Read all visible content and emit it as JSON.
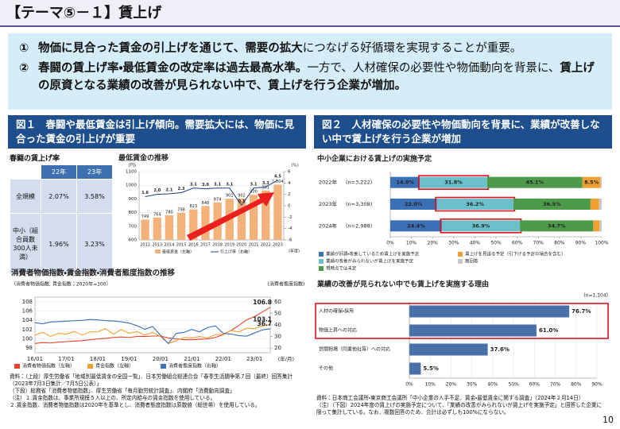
{
  "header": {
    "title": "【テーマ⑤－１】賃上げ"
  },
  "points": [
    {
      "marker": "①",
      "parts": [
        {
          "text": "物価に見合った賃金の引上げを通じて、需要の拡大",
          "bold": true
        },
        {
          "text": "につなげる好循環を実現することが重要。",
          "bold": false
        }
      ]
    },
    {
      "marker": "②",
      "parts": [
        {
          "text": "春闘の賃上げ率・最低賃金の改定率は過去最高水準。",
          "bold": true
        },
        {
          "text": "一方で、人材確保の必要性や物価動向を背景に、",
          "bold": false
        },
        {
          "text": "賃上げの原資となる業績の改善が見られない中で、賃上げを行う企業が増加。",
          "bold": true
        }
      ]
    }
  ],
  "fig1": {
    "heading": "図１　春闘や最低賃金は引上げ傾向。需要拡大には、物価に見合った賃金の引上げが重要",
    "table": {
      "title": "春闘の賃上げ率",
      "columns": [
        "22年",
        "23年"
      ],
      "rows": [
        {
          "label": "全規模",
          "values": [
            "2.07%",
            "3.58%"
          ]
        },
        {
          "label": "中小（組合員数300人未満）",
          "values": [
            "1.96%",
            "3.23%"
          ]
        }
      ]
    },
    "min_wage": {
      "type": "bar",
      "title": "最低賃金の推移",
      "y_unit": "(円)",
      "y2_unit": "(%)",
      "x_unit": "(年度)",
      "categories": [
        "2012",
        "2013",
        "2014",
        "2015",
        "2016",
        "2017",
        "2018",
        "2019",
        "2020",
        "2021",
        "2022",
        "2023"
      ],
      "series": [
        {
          "name": "最低賃金（左軸）",
          "color": "#f2b27a",
          "values": [
            749,
            764,
            780,
            798,
            823,
            848,
            874,
            901,
            902,
            930,
            961,
            1004
          ],
          "value_labels": [
            "749",
            "764",
            "780",
            "798",
            "823",
            "848",
            "874",
            "901",
            "902",
            "930",
            "961",
            "1,004"
          ]
        },
        {
          "name": "引上げ率（右軸）",
          "color": "#1f3f7a",
          "axis": "y2",
          "type": "line",
          "values": [
            1.6,
            2.0,
            2.1,
            2.3,
            3.1,
            3.0,
            3.1,
            3.1,
            0.1,
            3.1,
            3.3,
            4.5
          ],
          "value_labels": [
            "1.6",
            "2.0",
            "2.1",
            "2.3",
            "3.1",
            "3.0",
            "3.1",
            "3.1",
            "0.1",
            "3.1",
            "3.3",
            "4.5"
          ]
        }
      ],
      "ylim": [
        600,
        1100
      ],
      "yticks": [
        600,
        700,
        800,
        900,
        1000,
        1100
      ],
      "y2lim": [
        -6,
        6
      ],
      "y2ticks": [
        -6,
        -4,
        -2,
        0,
        2,
        4,
        6
      ],
      "grid": true
    },
    "cpi": {
      "type": "line",
      "title": "消費者物価指数・賃金指数・消費者態度指数の推移",
      "y_unit": "（消費者物価指数, 賃金指数；2020年=100）",
      "y2_unit": "(消費者態度指数)",
      "x_unit": "(年/月)",
      "categories": [
        "16/01",
        null,
        null,
        null,
        "17/01",
        null,
        null,
        null,
        "18/01",
        null,
        null,
        null,
        "19/01",
        null,
        null,
        null,
        "20/01",
        null,
        null,
        null,
        "21/01",
        null,
        null,
        null,
        "22/01",
        null,
        null,
        null,
        "23/01",
        null,
        null
      ],
      "series": [
        {
          "name": "消費者物価指数（左軸）",
          "color": "#e8402a",
          "values": [
            99.0,
            99.2,
            99.1,
            99.3,
            99.4,
            99.5,
            99.6,
            99.8,
            100.0,
            100.1,
            100.3,
            100.4,
            100.3,
            100.5,
            100.5,
            100.6,
            100.6,
            100.2,
            100.0,
            99.8,
            99.8,
            99.9,
            100.0,
            100.3,
            100.9,
            101.8,
            102.9,
            104.1,
            104.8,
            105.8,
            106.8
          ]
        },
        {
          "name": "賃金指数（左軸）",
          "color": "#f0a030",
          "values": [
            100.8,
            101.4,
            100.5,
            101.2,
            101.0,
            101.6,
            100.8,
            101.5,
            101.5,
            102.2,
            101.0,
            102.0,
            101.2,
            101.6,
            100.8,
            101.4,
            100.5,
            99.0,
            99.6,
            100.3,
            100.2,
            100.5,
            100.2,
            100.9,
            101.0,
            101.8,
            101.5,
            102.3,
            102.2,
            102.8,
            103.1
          ]
        },
        {
          "name": "消費者態度指数（右軸）",
          "color": "#3b6fb6",
          "axis": "y2",
          "values": [
            41.9,
            41.0,
            42.5,
            42.9,
            43.2,
            43.6,
            43.9,
            44.7,
            44.3,
            43.7,
            43.4,
            42.7,
            41.6,
            39.4,
            36.2,
            38.7,
            31.1,
            24.0,
            32.7,
            33.6,
            36.1,
            34.1,
            37.8,
            39.2,
            32.8,
            32.1,
            30.8,
            30.3,
            33.1,
            35.7,
            36.7
          ]
        }
      ],
      "ylim": [
        97,
        109
      ],
      "yticks": [
        98,
        100,
        102,
        104,
        106,
        108
      ],
      "y2lim": [
        16,
        64
      ],
      "y2ticks": [
        20,
        30,
        40,
        50,
        60
      ],
      "grid": true
    }
  },
  "fig2": {
    "heading": "図２　人材確保の必要性や物価動向を背景に、業績が改善しない中で賃上げを行う企業が増加",
    "plan": {
      "type": "stacked_bar",
      "title": "中小企業における賃上げの実施予定",
      "categories": [
        "2022年",
        "2023年",
        "2024年"
      ],
      "sample_sizes": [
        "(n=3,222)",
        "(n=3,308)",
        "(n=2,988)"
      ],
      "series": [
        {
          "name": "業績が好調・改善しているため賃上げを実施予定",
          "color": "#3b6fb6",
          "values": [
            14.0,
            22.0,
            24.4
          ],
          "value_labels": [
            "14.0%",
            "22.0%",
            "24.4%"
          ]
        },
        {
          "name": "業績の改善がみられないが賃上げを実施予定",
          "color": "#6cc0cc",
          "values": [
            31.8,
            36.2,
            36.9
          ],
          "value_labels": [
            "31.8%",
            "36.2%",
            "36.9%"
          ]
        },
        {
          "name": "現時点では未定",
          "color": "#4e9a4b",
          "values": [
            45.1,
            36.5,
            34.7
          ],
          "value_labels": [
            "45.1%",
            "36.5%",
            "34.7%"
          ]
        },
        {
          "name": "賃上げを見送る予定（引下げる予定の場合を含む）",
          "color": "#f0a030",
          "values": [
            8.5,
            4.0,
            3.0
          ],
          "value_labels": [
            "8.5%",
            null,
            null
          ]
        },
        {
          "name": "無回答",
          "color": "#c8c8c8",
          "values": [
            0.6,
            1.3,
            1.0
          ]
        }
      ],
      "xlim": [
        0,
        100
      ],
      "xticks": [
        {
          "value": 0,
          "label": "0%"
        },
        {
          "value": 10,
          "label": "10%"
        },
        {
          "value": 20,
          "label": "20%"
        },
        {
          "value": 30,
          "label": "30%"
        },
        {
          "value": 40,
          "label": "40%"
        },
        {
          "value": 50,
          "label": "50%"
        },
        {
          "value": 60,
          "label": "60%"
        },
        {
          "value": 70,
          "label": "70%"
        },
        {
          "value": 80,
          "label": "80%"
        },
        {
          "value": 90,
          "label": "90%"
        },
        {
          "value": 100,
          "label": "100%"
        }
      ]
    },
    "reasons": {
      "type": "hbar",
      "title": "業績の改善が見られない中でも賃上げを実施する理由",
      "sample_size": "(n=1,104)",
      "categories": [
        "人材の確保・採用",
        "物価上昇への対応",
        "世間相場（同業他社等）への対応",
        "その他"
      ],
      "values": [
        76.7,
        61.0,
        37.6,
        5.5
      ],
      "value_labels": [
        "76.7%",
        "61.0%",
        "37.6%",
        "5.5%"
      ],
      "color": "#4a72aa",
      "xlim": [
        0,
        90
      ],
      "xticks": [
        {
          "value": 0,
          "label": "0%"
        },
        {
          "value": 10,
          "label": "10%"
        },
        {
          "value": 20,
          "label": "20%"
        },
        {
          "value": 30,
          "label": "30%"
        },
        {
          "value": 40,
          "label": "40%"
        },
        {
          "value": 50,
          "label": "50%"
        },
        {
          "value": 60,
          "label": "60%"
        },
        {
          "value": 70,
          "label": "70%"
        },
        {
          "value": 80,
          "label": "80%"
        },
        {
          "value": 90,
          "label": "90%"
        }
      ],
      "grid": true
    }
  },
  "notes": {
    "left": [
      "資料：（上段）厚生労働省「地域別最低賃金の全国一覧」、日本労働組合総連合会「春季生活闘争第７回（最終）回答集計（2023年7月3日集計／7月5日公表）」",
      "（下段）総務省「消費者物価指数」、厚生労働省「毎月勤労統計調査」、内閣府「消費動向調査」",
      "（注）１.賃金指数は、事業所規模５人以上の、所定内給与の賃金指数を使用している。",
      "２.賃金指数、消費者物価指数は2020年を基準とし、消費者態度指数は原数値（総世帯）を使用している。"
    ],
    "right": [
      "資料：日本商工会議所・東京商工会議所「中小企業の人手不足、賃金・最低賃金に関する調査」（2024年２月14日）",
      "（注）（下図）2024年度の賃上げの実施予定について、「業績の改善がみられないが賃上げを実施予定」と回答した企業に限って集計している。なお、複数回答のため、合計は必ずしも100%にならない。"
    ]
  },
  "page_number": "10"
}
